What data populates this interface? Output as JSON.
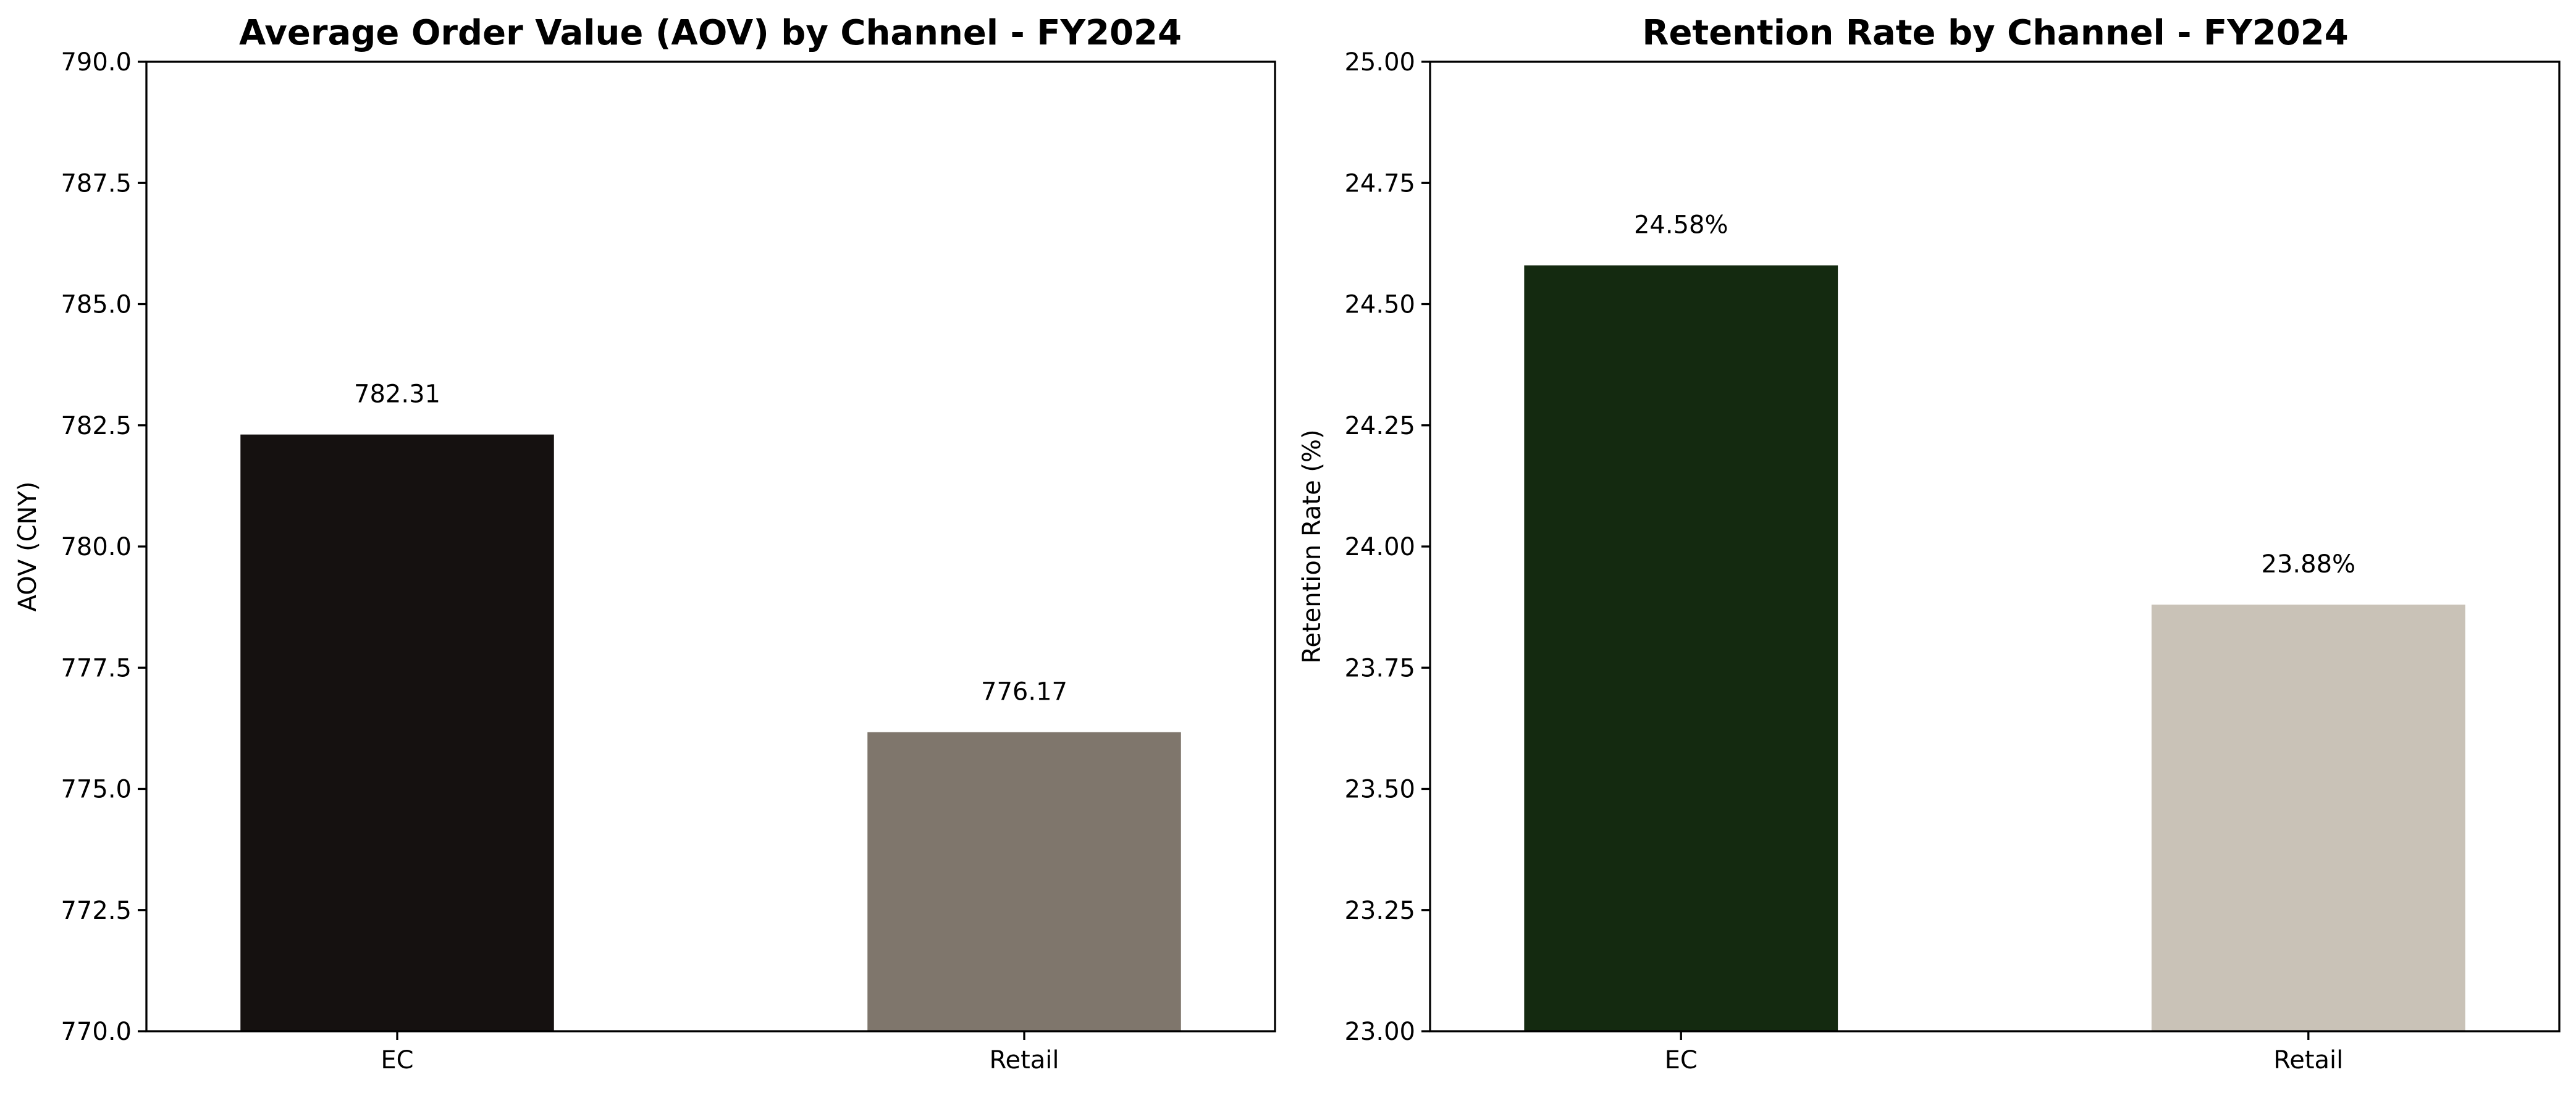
{
  "chart_data": [
    {
      "type": "bar",
      "title": "Average Order Value (AOV) by Channel - FY2024",
      "xlabel": "",
      "ylabel": "AOV (CNY)",
      "categories": [
        "EC",
        "Retail"
      ],
      "values": [
        782.31,
        776.17
      ],
      "data_labels": [
        "782.31",
        "776.17"
      ],
      "colors": [
        "#151110",
        "#7f766c"
      ],
      "ylim": [
        770.0,
        790.0
      ],
      "yticks": [
        770.0,
        772.5,
        775.0,
        777.5,
        780.0,
        782.5,
        785.0,
        787.5,
        790.0
      ],
      "ytick_labels": [
        "770.0",
        "772.5",
        "775.0",
        "777.5",
        "780.0",
        "782.5",
        "785.0",
        "787.5",
        "790.0"
      ],
      "grid": false,
      "legend": "none"
    },
    {
      "type": "bar",
      "title": "Retention Rate by Channel - FY2024",
      "xlabel": "",
      "ylabel": "Retention Rate (%)",
      "categories": [
        "EC",
        "Retail"
      ],
      "values": [
        24.58,
        23.88
      ],
      "data_labels": [
        "24.58%",
        "23.88%"
      ],
      "colors": [
        "#142a10",
        "#c9c2b7"
      ],
      "ylim": [
        23.0,
        25.0
      ],
      "yticks": [
        23.0,
        23.25,
        23.5,
        23.75,
        24.0,
        24.25,
        24.5,
        24.75,
        25.0
      ],
      "ytick_labels": [
        "23.00",
        "23.25",
        "23.50",
        "23.75",
        "24.00",
        "24.25",
        "24.50",
        "24.75",
        "25.00"
      ],
      "grid": false,
      "legend": "none"
    }
  ]
}
